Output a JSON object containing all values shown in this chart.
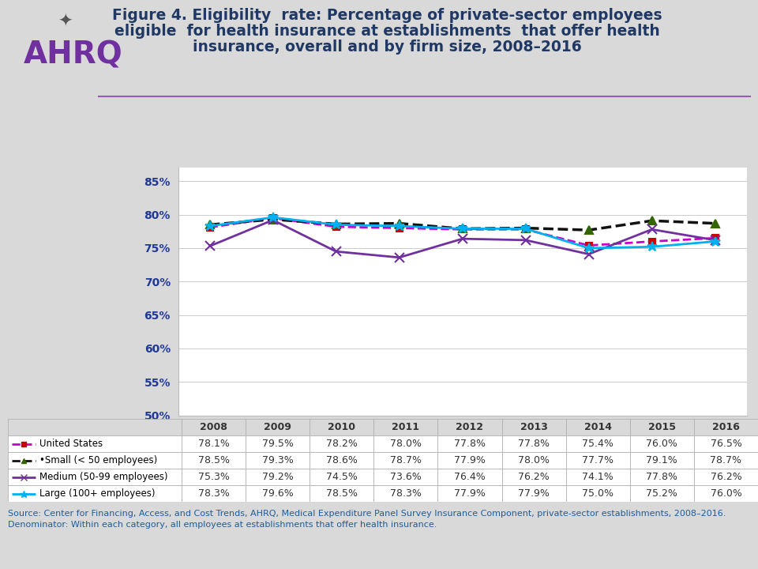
{
  "title": "Figure 4. Eligibility  rate: Percentage of private-sector employees\neligible  for health insurance at establishments  that offer health\ninsurance, overall and by firm size, 2008–2016",
  "years": [
    2008,
    2009,
    2010,
    2011,
    2012,
    2013,
    2014,
    2015,
    2016
  ],
  "series_order": [
    "United States",
    "Small (< 50 employees)",
    "Medium (50-99 employees)",
    "Large (100+ employees)"
  ],
  "series": {
    "United States": {
      "values": [
        78.1,
        79.5,
        78.2,
        78.0,
        77.8,
        77.8,
        75.4,
        76.0,
        76.5
      ],
      "color": "#CC00CC",
      "linestyle": "--",
      "marker": "s",
      "markersize": 6,
      "mfc": "#CC0000",
      "mec": "#CC0000",
      "linewidth": 2.0
    },
    "Small (< 50 employees)": {
      "values": [
        78.5,
        79.3,
        78.6,
        78.7,
        77.9,
        78.0,
        77.7,
        79.1,
        78.7
      ],
      "color": "#111111",
      "linestyle": "--",
      "marker": "^",
      "markersize": 7,
      "mfc": "#336600",
      "mec": "#336600",
      "linewidth": 2.5
    },
    "Medium (50-99 employees)": {
      "values": [
        75.3,
        79.2,
        74.5,
        73.6,
        76.4,
        76.2,
        74.1,
        77.8,
        76.2
      ],
      "color": "#7030A0",
      "linestyle": "-",
      "marker": "x",
      "markersize": 8,
      "mfc": "#7030A0",
      "mec": "#7030A0",
      "linewidth": 2.0
    },
    "Large (100+ employees)": {
      "values": [
        78.3,
        79.6,
        78.5,
        78.3,
        77.9,
        77.9,
        75.0,
        75.2,
        76.0
      ],
      "color": "#00B0F0",
      "linestyle": "-",
      "marker": "*",
      "markersize": 9,
      "mfc": "#00B0F0",
      "mec": "#00B0F0",
      "linewidth": 2.0
    }
  },
  "ylim": [
    50,
    87
  ],
  "yticks": [
    50,
    55,
    60,
    65,
    70,
    75,
    80,
    85
  ],
  "ytick_labels": [
    "50%",
    "55%",
    "60%",
    "65%",
    "70%",
    "75%",
    "80%",
    "85%"
  ],
  "background_color": "#D9D9D9",
  "plot_bg_color": "#FFFFFF",
  "title_color": "#1F3864",
  "axis_label_color": "#1F3899",
  "source_text": "Source: Center for Financing, Access, and Cost Trends, AHRQ, Medical Expenditure Panel Survey Insurance Component, private-sector establishments, 2008–2016.\nDenominator: Within each category, all employees at establishments that offer health insurance.",
  "source_color": "#1F5C99",
  "table_values": {
    "United States": [
      "78.1%",
      "79.5%",
      "78.2%",
      "78.0%",
      "77.8%",
      "77.8%",
      "75.4%",
      "76.0%",
      "76.5%"
    ],
    "Small (< 50 employees)": [
      "78.5%",
      "79.3%",
      "78.6%",
      "78.7%",
      "77.9%",
      "78.0%",
      "77.7%",
      "79.1%",
      "78.7%"
    ],
    "Medium (50-99 employees)": [
      "75.3%",
      "79.2%",
      "74.5%",
      "73.6%",
      "76.4%",
      "76.2%",
      "74.1%",
      "77.8%",
      "76.2%"
    ],
    "Large (100+ employees)": [
      "78.3%",
      "79.6%",
      "78.5%",
      "78.3%",
      "77.9%",
      "77.9%",
      "75.0%",
      "75.2%",
      "76.0%"
    ]
  },
  "legend_labels": [
    "United States",
    "•Small (< 50 employees)",
    "Medium (50-99 employees)",
    "Large (100+ employees)"
  ],
  "legend_text_colors": [
    "#000000",
    "#000000",
    "#000000",
    "#000000"
  ],
  "divider_color": "#9B59B6",
  "ahrq_text": "AHRQ"
}
